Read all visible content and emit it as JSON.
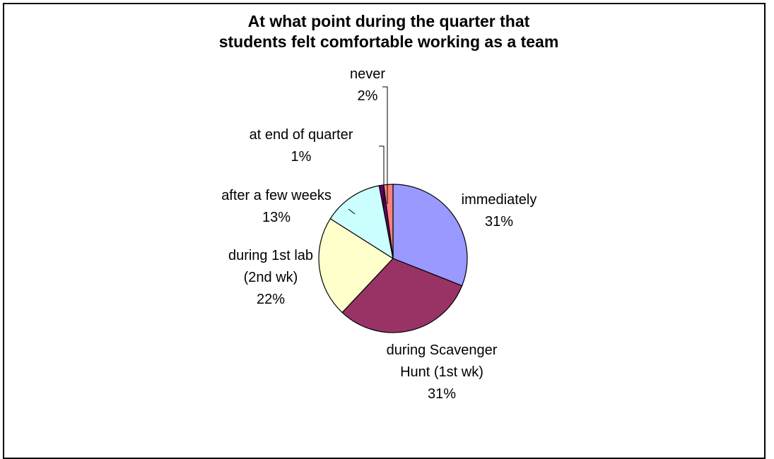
{
  "chart_data": {
    "type": "pie",
    "title": [
      "At what point during the quarter that",
      "students felt comfortable working as a team"
    ],
    "slices": [
      {
        "label": [
          "immediately"
        ],
        "percent_label": "31%",
        "value": 31,
        "color": "#9999ff"
      },
      {
        "label": [
          "during Scavenger",
          "Hunt (1st wk)"
        ],
        "percent_label": "31%",
        "value": 31,
        "color": "#993366"
      },
      {
        "label": [
          "during 1st lab",
          "(2nd wk)"
        ],
        "percent_label": "22%",
        "value": 22,
        "color": "#ffffcc"
      },
      {
        "label": [
          "after a few weeks"
        ],
        "percent_label": "13%",
        "value": 13,
        "color": "#ccffff"
      },
      {
        "label": [
          "at end of quarter"
        ],
        "percent_label": "1%",
        "value": 1,
        "color": "#660066"
      },
      {
        "label": [
          "never"
        ],
        "percent_label": "2%",
        "value": 2,
        "color": "#ff8080"
      }
    ],
    "legend": "none",
    "start_angle_deg": 0,
    "direction": "clockwise"
  }
}
